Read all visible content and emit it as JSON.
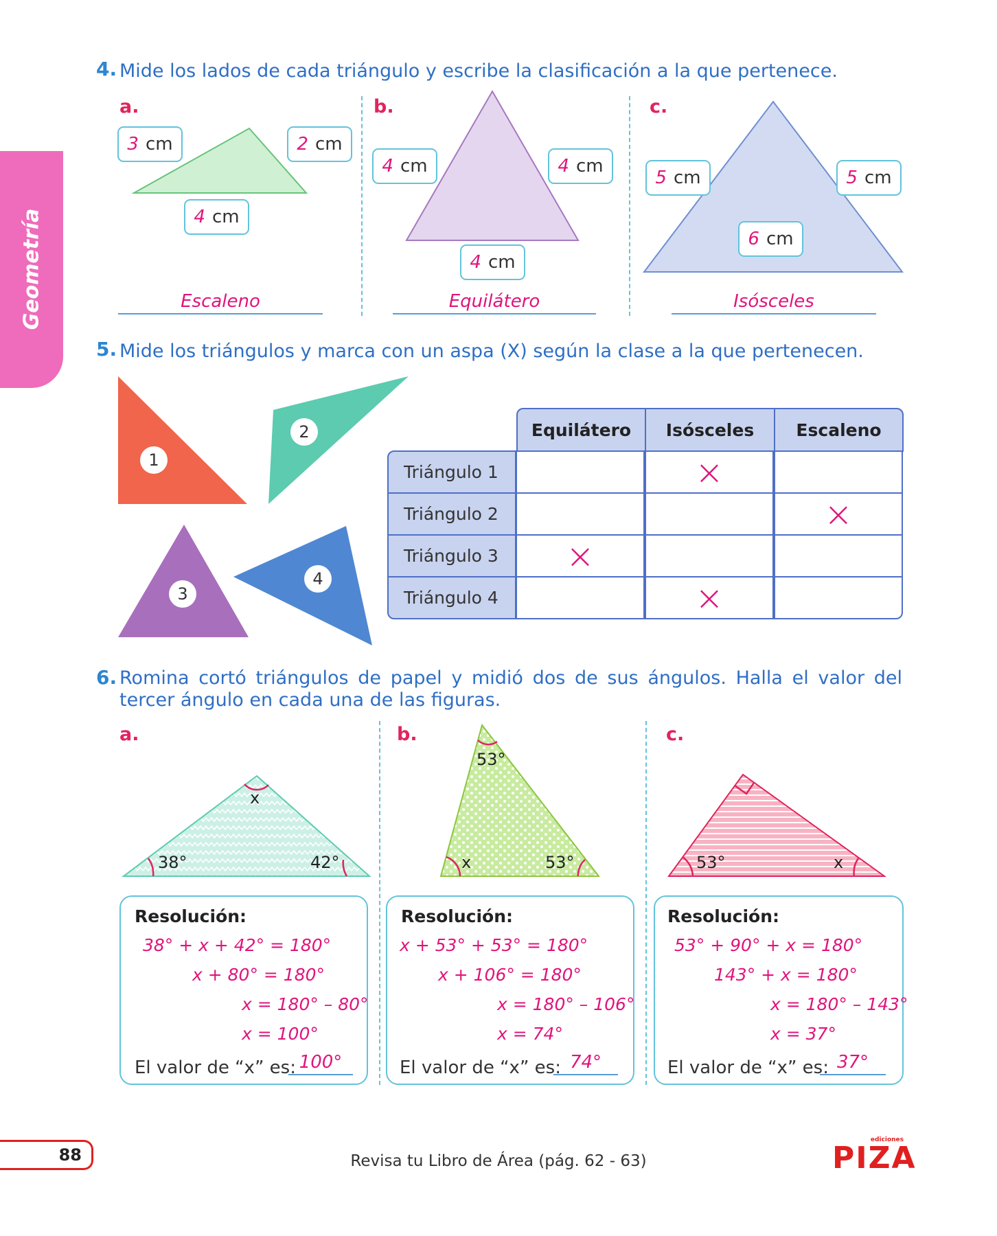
{
  "side_tab": "Geometría",
  "page_number": "88",
  "footer_text": "Revisa tu Libro de Área (pág. 62 - 63)",
  "logo": {
    "small": "ediciones",
    "name": "PIZA"
  },
  "q4": {
    "number": "4.",
    "instruction": "Mide los lados de cada triángulo y escribe la clasificación a la que pertenece.",
    "a": {
      "letter": "a.",
      "left": {
        "value": "3",
        "unit": "cm"
      },
      "right": {
        "value": "2",
        "unit": "cm"
      },
      "bottom": {
        "value": "4",
        "unit": "cm"
      },
      "answer": "Escaleno"
    },
    "b": {
      "letter": "b.",
      "left": {
        "value": "4",
        "unit": "cm"
      },
      "right": {
        "value": "4",
        "unit": "cm"
      },
      "bottom": {
        "value": "4",
        "unit": "cm"
      },
      "answer": "Equilátero"
    },
    "c": {
      "letter": "c.",
      "left": {
        "value": "5",
        "unit": "cm"
      },
      "right": {
        "value": "5",
        "unit": "cm"
      },
      "bottom": {
        "value": "6",
        "unit": "cm"
      },
      "answer": "Isósceles"
    }
  },
  "q5": {
    "number": "5.",
    "instruction": "Mide los triángulos y marca con un aspa (X) según la clase a la que pertenecen.",
    "triangle_labels": [
      "1",
      "2",
      "3",
      "4"
    ],
    "headers": [
      "Equilátero",
      "Isósceles",
      "Escaleno"
    ],
    "rows": [
      {
        "label": "Triángulo 1",
        "marks": [
          "",
          "×",
          ""
        ]
      },
      {
        "label": "Triángulo 2",
        "marks": [
          "",
          "",
          "×"
        ]
      },
      {
        "label": "Triángulo 3",
        "marks": [
          "×",
          "",
          ""
        ]
      },
      {
        "label": "Triángulo 4",
        "marks": [
          "",
          "×",
          ""
        ]
      }
    ],
    "colors": {
      "t1": "#f0654b",
      "t2": "#5ccbb0",
      "t3": "#a86fbc",
      "t4": "#4f87d3"
    }
  },
  "q6": {
    "number": "6.",
    "instruction": "Romina cortó triángulos de papel y midió dos de sus ángulos. Halla el valor del tercer ángulo en cada una de las figuras.",
    "a": {
      "letter": "a.",
      "angles": {
        "left": "38°",
        "right": "42°",
        "top": "x"
      },
      "title": "Resolución:",
      "lines": [
        "38° + x + 42° = 180°",
        "x + 80° = 180°",
        "x = 180° – 80°",
        "x = 100°"
      ],
      "value_label": "El valor de “x” es:",
      "answer": "100°"
    },
    "b": {
      "letter": "b.",
      "angles": {
        "top": "53°",
        "left": "x",
        "right": "53°"
      },
      "title": "Resolución:",
      "lines": [
        "x + 53° + 53° = 180°",
        "x + 106° = 180°",
        "x = 180° – 106°",
        "x = 74°"
      ],
      "value_label": "El valor de “x” es:",
      "answer": "74°"
    },
    "c": {
      "letter": "c.",
      "angles": {
        "left": "53°",
        "right": "x"
      },
      "title": "Resolución:",
      "lines": [
        "53° + 90° + x = 180°",
        "143° + x = 180°",
        "x = 180° – 143°",
        "x = 37°"
      ],
      "value_label": "El valor de “x” es:",
      "answer": "37°"
    }
  }
}
